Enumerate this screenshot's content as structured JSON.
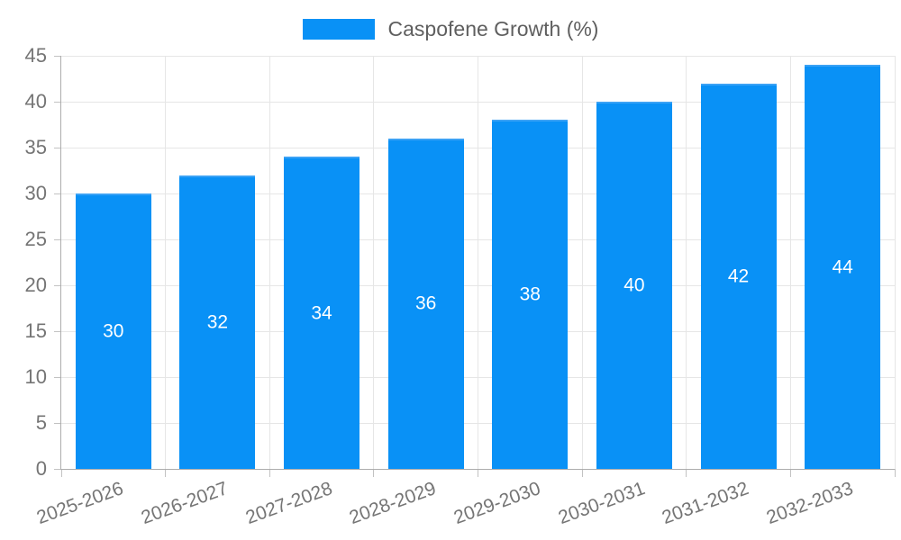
{
  "legend": {
    "label": "Caspofene Growth (%)"
  },
  "chart_data": {
    "type": "bar",
    "title": "",
    "categories": [
      "2025-2026",
      "2026-2027",
      "2027-2028",
      "2028-2029",
      "2029-2030",
      "2030-2031",
      "2031-2032",
      "2032-2033"
    ],
    "series": [
      {
        "name": "Caspofene Growth (%)",
        "values": [
          30,
          32,
          34,
          36,
          38,
          40,
          42,
          44
        ]
      }
    ],
    "value_labels": [
      "30",
      "32",
      "34",
      "36",
      "38",
      "40",
      "42",
      "44"
    ],
    "y_tick_labels": [
      "0",
      "5",
      "10",
      "15",
      "20",
      "25",
      "30",
      "35",
      "40",
      "45"
    ],
    "xlabel": "",
    "ylabel": "",
    "ylim": [
      0,
      45
    ],
    "ytick_step": 5,
    "grid": true,
    "legend_position": "top",
    "colors": {
      "bar": "#0991f6",
      "bar_border": "#3ba2f5",
      "grid": "#e6e6e6",
      "axis": "#adadad",
      "tick_stub": "#c2c2c2",
      "tick_label": "#757575",
      "legend_text": "#5f5f5f",
      "bar_value_label": "#ffffff"
    }
  }
}
